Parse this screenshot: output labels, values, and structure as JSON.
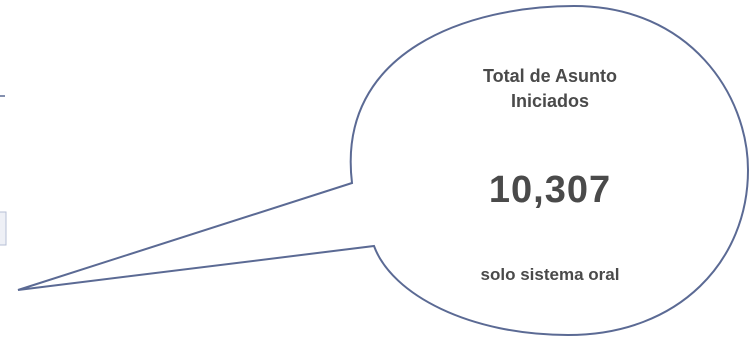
{
  "callout": {
    "title_line1": "Total de Asunto",
    "title_line2": "Iniciados",
    "value": "10,307",
    "footer": "solo sistema oral",
    "colors": {
      "outline": "#5b6a94",
      "text": "#4a4a4a",
      "fill": "#ffffff",
      "left_panel_fill": "#eef0f6"
    }
  }
}
